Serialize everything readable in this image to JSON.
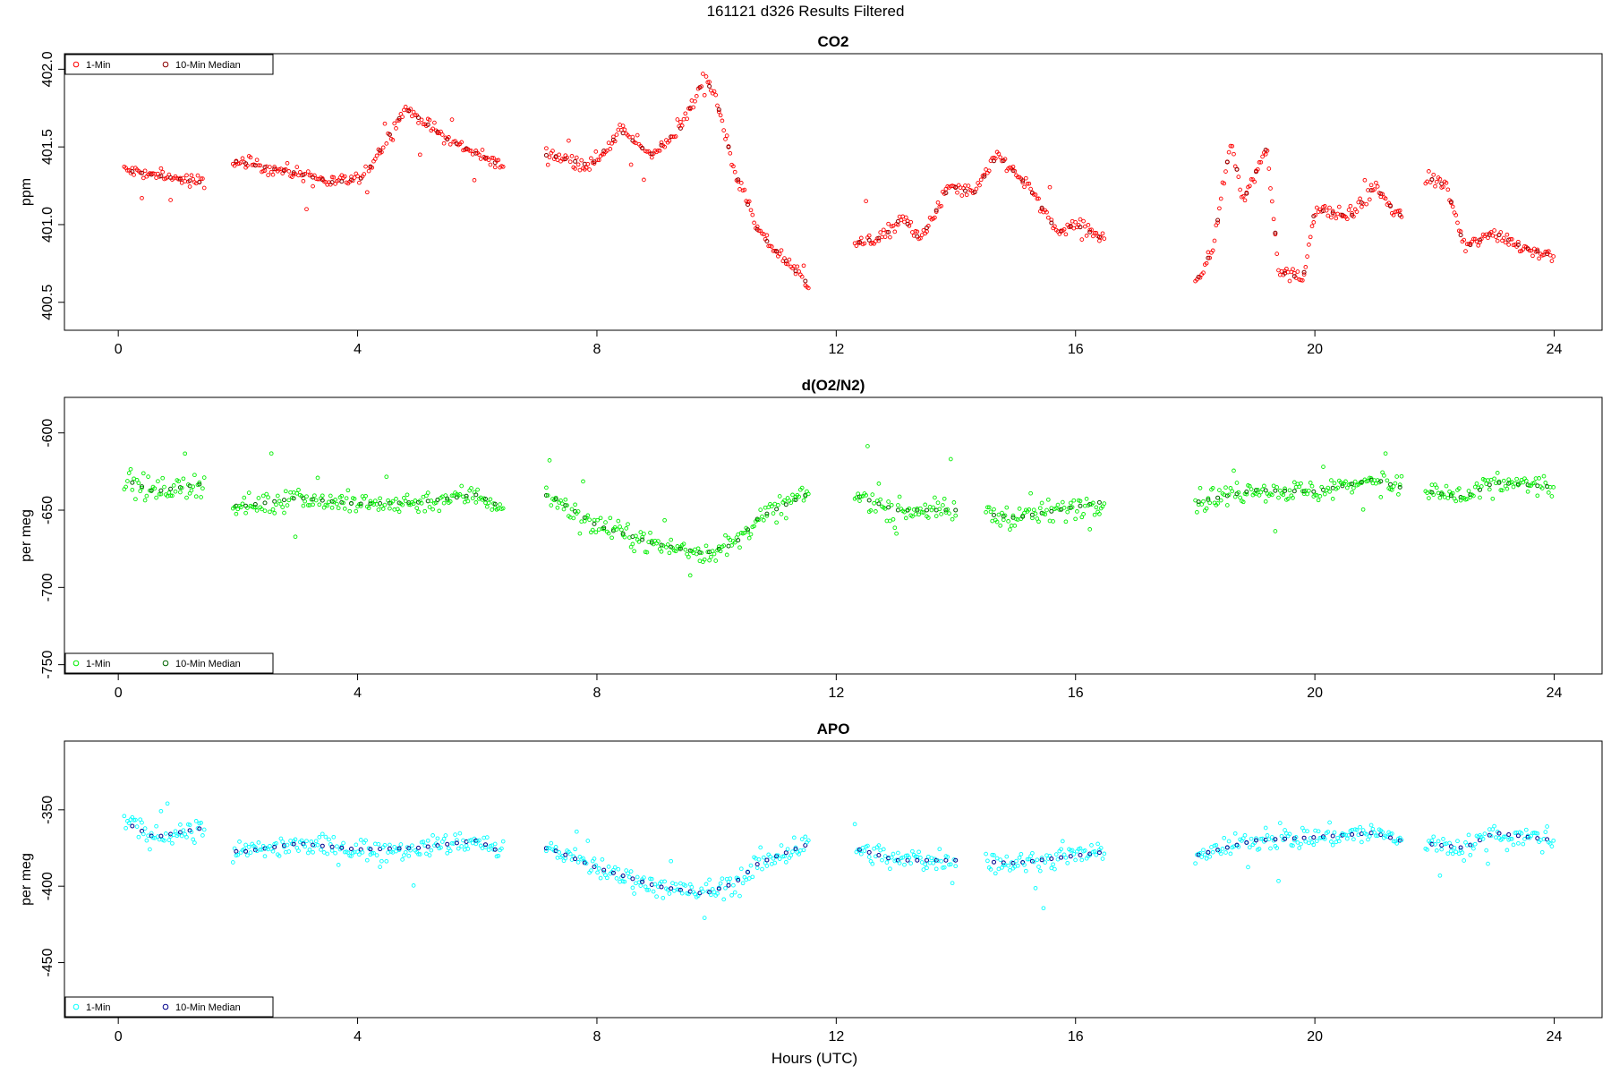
{
  "figure": {
    "title": "161121   d326   Results Filtered",
    "xlabel": "Hours (UTC)"
  },
  "chart_data": [
    {
      "type": "scatter",
      "title": "CO2",
      "ylabel": "ppm",
      "xlim": [
        -0.9,
        24.8
      ],
      "ylim": [
        400.32,
        402.1
      ],
      "xticks": [
        0,
        4,
        8,
        12,
        16,
        20,
        24
      ],
      "yticks": [
        400.5,
        401.0,
        401.5,
        402.0
      ],
      "ytick_labels": [
        "400.5",
        "401.0",
        "401.5",
        "402.0"
      ],
      "legend_position": "top-left",
      "series": [
        {
          "name": "1-Min",
          "color": "#ff0000",
          "x_range": [
            0.1,
            24.0
          ],
          "gaps": [
            [
              1.45,
              1.9
            ],
            [
              6.45,
              7.15
            ],
            [
              11.55,
              12.3
            ],
            [
              16.5,
              18.0
            ],
            [
              21.45,
              21.85
            ]
          ],
          "profile": [
            [
              0.1,
              401.35
            ],
            [
              1.4,
              401.27
            ],
            [
              1.9,
              401.41
            ],
            [
              3.0,
              401.33
            ],
            [
              3.6,
              401.27
            ],
            [
              4.1,
              401.3
            ],
            [
              4.8,
              401.75
            ],
            [
              5.5,
              401.55
            ],
            [
              6.4,
              401.38
            ],
            [
              7.2,
              401.45
            ],
            [
              7.9,
              401.38
            ],
            [
              8.4,
              401.6
            ],
            [
              8.9,
              401.45
            ],
            [
              9.4,
              401.62
            ],
            [
              9.8,
              401.95
            ],
            [
              10.0,
              401.8
            ],
            [
              10.3,
              401.35
            ],
            [
              10.7,
              400.95
            ],
            [
              11.5,
              400.63
            ],
            [
              12.3,
              400.88
            ],
            [
              12.8,
              400.92
            ],
            [
              13.1,
              401.05
            ],
            [
              13.4,
              400.9
            ],
            [
              13.9,
              401.25
            ],
            [
              14.3,
              401.2
            ],
            [
              14.7,
              401.45
            ],
            [
              15.2,
              401.25
            ],
            [
              15.7,
              400.95
            ],
            [
              16.0,
              401.0
            ],
            [
              16.4,
              400.92
            ],
            [
              18.0,
              400.62
            ],
            [
              18.3,
              400.85
            ],
            [
              18.6,
              401.55
            ],
            [
              18.8,
              401.15
            ],
            [
              19.2,
              401.5
            ],
            [
              19.4,
              400.7
            ],
            [
              19.8,
              400.65
            ],
            [
              20.0,
              401.1
            ],
            [
              20.6,
              401.05
            ],
            [
              21.0,
              401.25
            ],
            [
              21.4,
              401.05
            ],
            [
              21.9,
              401.3
            ],
            [
              22.2,
              401.25
            ],
            [
              22.5,
              400.85
            ],
            [
              23.0,
              400.95
            ],
            [
              23.5,
              400.85
            ],
            [
              24.0,
              400.8
            ]
          ],
          "scatter": 0.055
        },
        {
          "name": "10-Min Median",
          "color": "#8b0000",
          "x_range": [
            0.1,
            24.0
          ]
        }
      ]
    },
    {
      "type": "scatter",
      "title": "d(O2/N2)",
      "ylabel": "per meg",
      "xlim": [
        -0.9,
        24.8
      ],
      "ylim": [
        -756,
        -577
      ],
      "xticks": [
        0,
        4,
        8,
        12,
        16,
        20,
        24
      ],
      "yticks": [
        -750,
        -700,
        -650,
        -600
      ],
      "ytick_labels": [
        "-750",
        "-700",
        "-650",
        "-600"
      ],
      "legend_position": "bottom-left",
      "series": [
        {
          "name": "1-Min",
          "color": "#00ee00",
          "x_range": [
            0.1,
            24.0
          ],
          "gaps": [
            [
              1.45,
              1.9
            ],
            [
              6.45,
              7.15
            ],
            [
              11.55,
              12.3
            ],
            [
              14.0,
              14.5
            ],
            [
              16.5,
              18.0
            ],
            [
              21.45,
              21.85
            ]
          ],
          "profile": [
            [
              0.1,
              -630
            ],
            [
              0.6,
              -638
            ],
            [
              1.4,
              -633
            ],
            [
              2.0,
              -648
            ],
            [
              3.0,
              -642
            ],
            [
              4.0,
              -646
            ],
            [
              5.0,
              -645
            ],
            [
              6.0,
              -640
            ],
            [
              6.4,
              -648
            ],
            [
              7.2,
              -640
            ],
            [
              8.0,
              -660
            ],
            [
              9.0,
              -672
            ],
            [
              9.8,
              -678
            ],
            [
              10.3,
              -672
            ],
            [
              10.7,
              -655
            ],
            [
              11.5,
              -640
            ],
            [
              12.3,
              -640
            ],
            [
              13.0,
              -650
            ],
            [
              14.0,
              -650
            ],
            [
              15.0,
              -655
            ],
            [
              16.4,
              -645
            ],
            [
              18.0,
              -645
            ],
            [
              19.0,
              -637
            ],
            [
              20.0,
              -638
            ],
            [
              21.0,
              -630
            ],
            [
              21.4,
              -635
            ],
            [
              22.5,
              -642
            ],
            [
              23.0,
              -632
            ],
            [
              24.0,
              -635
            ]
          ],
          "scatter": 9
        },
        {
          "name": "10-Min Median",
          "color": "#006400",
          "x_range": [
            0.1,
            24.0
          ]
        }
      ]
    },
    {
      "type": "scatter",
      "title": "APO",
      "ylabel": "per meg",
      "xlim": [
        -0.9,
        24.8
      ],
      "ylim": [
        -486,
        -305
      ],
      "xticks": [
        0,
        4,
        8,
        12,
        16,
        20,
        24
      ],
      "yticks": [
        -450,
        -400,
        -350
      ],
      "ytick_labels": [
        "-450",
        "-400",
        "-350"
      ],
      "legend_position": "bottom-left",
      "series": [
        {
          "name": "1-Min",
          "color": "#00ffff",
          "x_range": [
            0.1,
            24.0
          ],
          "gaps": [
            [
              1.45,
              1.9
            ],
            [
              6.45,
              7.15
            ],
            [
              11.55,
              12.3
            ],
            [
              14.0,
              14.5
            ],
            [
              16.5,
              18.0
            ],
            [
              21.45,
              21.85
            ]
          ],
          "profile": [
            [
              0.1,
              -358
            ],
            [
              0.6,
              -368
            ],
            [
              1.4,
              -362
            ],
            [
              2.0,
              -378
            ],
            [
              3.0,
              -372
            ],
            [
              4.0,
              -376
            ],
            [
              5.0,
              -375
            ],
            [
              6.0,
              -370
            ],
            [
              6.4,
              -378
            ],
            [
              7.2,
              -375
            ],
            [
              8.0,
              -388
            ],
            [
              9.0,
              -400
            ],
            [
              9.8,
              -405
            ],
            [
              10.3,
              -398
            ],
            [
              10.7,
              -385
            ],
            [
              11.5,
              -373
            ],
            [
              12.3,
              -375
            ],
            [
              13.0,
              -383
            ],
            [
              14.0,
              -383
            ],
            [
              15.0,
              -385
            ],
            [
              16.4,
              -378
            ],
            [
              18.0,
              -380
            ],
            [
              19.0,
              -370
            ],
            [
              20.0,
              -368
            ],
            [
              21.0,
              -365
            ],
            [
              21.4,
              -370
            ],
            [
              22.5,
              -375
            ],
            [
              23.0,
              -365
            ],
            [
              24.0,
              -370
            ]
          ],
          "scatter": 9
        },
        {
          "name": "10-Min Median",
          "color": "#00008b",
          "x_range": [
            0.1,
            24.0
          ]
        }
      ]
    }
  ]
}
